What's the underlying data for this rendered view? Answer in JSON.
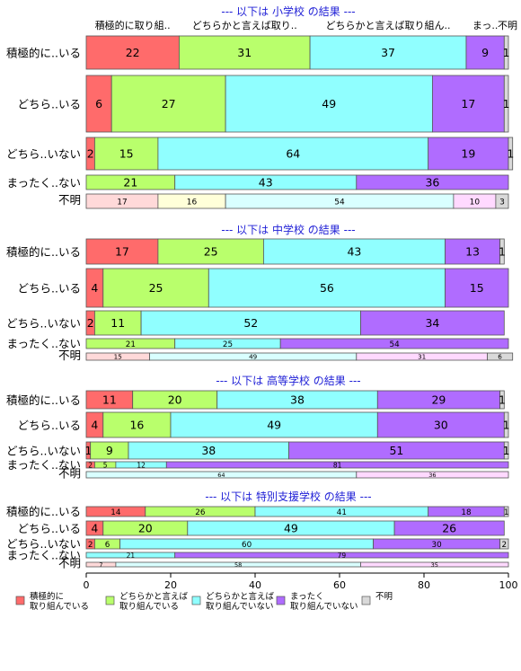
{
  "chart_data": {
    "type": "bar",
    "orientation": "horizontal",
    "stacked": true,
    "xlim": [
      0,
      100
    ],
    "x_ticks": [
      0,
      20,
      40,
      60,
      80,
      100
    ],
    "column_headers": [
      "積極的に取り組..",
      "どちらかと言えば取り..",
      "どちらかと言えば取り組ん..",
      "まっ..",
      "不明"
    ],
    "legend": [
      {
        "lines": [
          "積極的に",
          "取り組んでいる"
        ],
        "color": "#ff6b6b"
      },
      {
        "lines": [
          "どちらかと言えば",
          "取り組んでいる"
        ],
        "color": "#b9ff6c"
      },
      {
        "lines": [
          "どちらかと言えば",
          "取り組んでいない"
        ],
        "color": "#90ffff"
      },
      {
        "lines": [
          "まったく",
          "取り組んでいない"
        ],
        "color": "#b06cff"
      },
      {
        "lines": [
          "不明"
        ],
        "color": "#d9d9d9"
      }
    ],
    "legend_position": "bottom",
    "panels": [
      {
        "title": "--- 以下は 小学校 の結果 ---",
        "rows": [
          {
            "label": "積極的に..いる",
            "values": [
              22,
              31,
              37,
              9,
              1
            ]
          },
          {
            "label": "どちら..いる",
            "values": [
              6,
              27,
              49,
              17,
              1
            ]
          },
          {
            "label": "どちら..いない",
            "values": [
              2,
              15,
              64,
              19,
              1
            ]
          },
          {
            "label": "まったく..ない",
            "values": [
              0,
              21,
              43,
              36,
              0
            ]
          },
          {
            "label": "不明",
            "values": [
              17,
              16,
              54,
              10,
              3
            ]
          }
        ]
      },
      {
        "title": "--- 以下は 中学校 の結果 ---",
        "rows": [
          {
            "label": "積極的に..いる",
            "values": [
              17,
              25,
              43,
              13,
              1
            ]
          },
          {
            "label": "どちら..いる",
            "values": [
              4,
              25,
              56,
              15,
              0
            ]
          },
          {
            "label": "どちら..いない",
            "values": [
              2,
              11,
              52,
              34,
              0
            ]
          },
          {
            "label": "まったく..ない",
            "values": [
              0,
              21,
              25,
              54,
              0
            ]
          },
          {
            "label": "不明",
            "values": [
              15,
              0,
              49,
              31,
              6
            ]
          }
        ]
      },
      {
        "title": "--- 以下は 高等学校 の結果 ---",
        "rows": [
          {
            "label": "積極的に..いる",
            "values": [
              11,
              20,
              38,
              29,
              1
            ]
          },
          {
            "label": "どちら..いる",
            "values": [
              4,
              16,
              49,
              30,
              1
            ]
          },
          {
            "label": "どちら..いない",
            "values": [
              1,
              9,
              38,
              51,
              1
            ]
          },
          {
            "label": "まったく..ない",
            "values": [
              2,
              5,
              12,
              81,
              0
            ]
          },
          {
            "label": "不明",
            "values": [
              0,
              0,
              64,
              36,
              0
            ]
          }
        ]
      },
      {
        "title": "--- 以下は 特別支援学校 の結果 ---",
        "rows": [
          {
            "label": "積極的に..いる",
            "values": [
              14,
              26,
              41,
              18,
              1
            ]
          },
          {
            "label": "どちら..いる",
            "values": [
              4,
              20,
              49,
              26,
              0
            ]
          },
          {
            "label": "どちら..いない",
            "values": [
              2,
              6,
              60,
              30,
              2
            ]
          },
          {
            "label": "まったく..ない",
            "values": [
              0,
              0,
              21,
              79,
              0
            ]
          },
          {
            "label": "不明",
            "values": [
              7,
              0,
              58,
              35,
              0
            ]
          }
        ]
      }
    ]
  },
  "colors": {
    "series": [
      "#ff6b6b",
      "#b9ff6c",
      "#90ffff",
      "#b06cff",
      "#d9d9d9"
    ],
    "series_light": [
      "#ffd9d9",
      "#ffffd9",
      "#d9ffff",
      "#ffd9ff",
      "#d9d9d9"
    ],
    "title": "#1f1fd6"
  }
}
